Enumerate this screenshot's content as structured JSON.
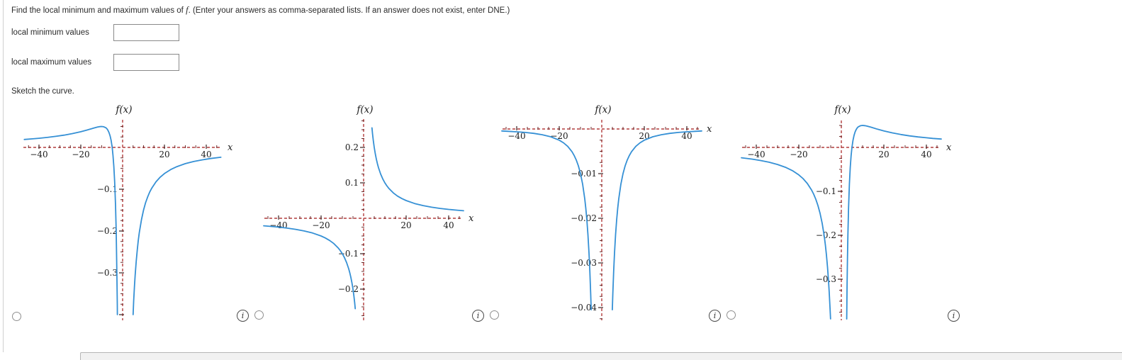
{
  "question": {
    "prefix": "Find the local minimum and maximum values of ",
    "func_symbol": "f",
    "suffix": ". (Enter your answers as comma-separated lists. If an answer does not exist, enter DNE.)"
  },
  "fields": [
    {
      "label": "local minimum values",
      "value": ""
    },
    {
      "label": "local maximum values",
      "value": ""
    }
  ],
  "sketch_prompt": "Sketch the curve.",
  "info_icon_label": "i",
  "colors": {
    "curve": "#3590d5",
    "axis": "#b23d3d",
    "minor_tick": "#6b2b2b",
    "major_tick": "#3a2222",
    "graph_text": "#1a1a1a"
  },
  "chart_data": [
    {
      "type": "line",
      "title": "f(x)",
      "xlabel": "x",
      "xlim": [
        -47,
        47
      ],
      "ylim": [
        -0.41,
        0.066
      ],
      "grid": false,
      "legend": "none",
      "x_tick_labels": [
        {
          "v": -40,
          "label": "−40"
        },
        {
          "v": -20,
          "label": "−20"
        },
        {
          "v": 20,
          "label": "20"
        },
        {
          "v": 40,
          "label": "40"
        }
      ],
      "y_tick_labels": [
        {
          "v": -0.1,
          "label": "−0.1"
        },
        {
          "v": -0.2,
          "label": "−0.2"
        },
        {
          "v": -0.3,
          "label": "−0.3"
        }
      ],
      "series": [
        {
          "name": "left-branch",
          "points": [
            [
              -47,
              0.01901
            ],
            [
              -43,
              0.02055
            ],
            [
              -40,
              0.02188
            ],
            [
              -36,
              0.02392
            ],
            [
              -32,
              0.02637
            ],
            [
              -28,
              0.02934
            ],
            [
              -24,
              0.03299
            ],
            [
              -20,
              0.0375
            ],
            [
              -17,
              0.04152
            ],
            [
              -14,
              0.04592
            ],
            [
              -12,
              0.04861
            ],
            [
              -11,
              0.04959
            ],
            [
              -10,
              0.05
            ],
            [
              -9,
              0.04938
            ],
            [
              -8,
              0.04688
            ],
            [
              -7.5,
              0.04444
            ],
            [
              -7,
              0.04082
            ],
            [
              -6.5,
              0.0355
            ],
            [
              -6,
              0.02778
            ],
            [
              -5.5,
              0.01653
            ],
            [
              -5,
              0
            ],
            [
              -4.6,
              -0.0189
            ],
            [
              -4.2,
              -0.04535
            ],
            [
              -3.8,
              -0.0831
            ],
            [
              -3.4,
              -0.13841
            ],
            [
              -3.1,
              -0.19771
            ],
            [
              -2.9,
              -0.2497
            ],
            [
              -2.7,
              -0.3155
            ],
            [
              -2.55,
              -0.37678
            ],
            [
              -2.5,
              -0.4
            ]
          ]
        },
        {
          "name": "right-branch",
          "points": [
            [
              5,
              -0.4
            ],
            [
              5.3,
              -0.36668
            ],
            [
              5.7,
              -0.32933
            ],
            [
              6,
              -0.30556
            ],
            [
              6.5,
              -0.27219
            ],
            [
              7,
              -0.2449
            ],
            [
              7.5,
              -0.22222
            ],
            [
              8,
              -0.20313
            ],
            [
              9,
              -0.17284
            ],
            [
              10,
              -0.15
            ],
            [
              11,
              -0.13223
            ],
            [
              12,
              -0.11806
            ],
            [
              13,
              -0.10651
            ],
            [
              14,
              -0.09694
            ],
            [
              16,
              -0.08203
            ],
            [
              18,
              -0.07099
            ],
            [
              20,
              -0.0625
            ],
            [
              23,
              -0.05293
            ],
            [
              26,
              -0.04586
            ],
            [
              30,
              -0.03889
            ],
            [
              34,
              -0.03374
            ],
            [
              38,
              -0.02978
            ],
            [
              42,
              -0.02664
            ],
            [
              47,
              -0.02354
            ]
          ]
        }
      ]
    },
    {
      "type": "line",
      "title": "f(x)",
      "xlabel": "x",
      "xlim": [
        -47,
        47
      ],
      "ylim": [
        -0.29,
        0.28
      ],
      "grid": false,
      "legend": "none",
      "x_tick_labels": [
        {
          "v": -40,
          "label": "−40"
        },
        {
          "v": -20,
          "label": "−20"
        },
        {
          "v": 20,
          "label": "20"
        },
        {
          "v": 40,
          "label": "40"
        }
      ],
      "y_tick_labels": [
        {
          "v": 0.2,
          "label": "0.2"
        },
        {
          "v": 0.1,
          "label": "0.1"
        },
        {
          "v": -0.1,
          "label": "−0.1"
        },
        {
          "v": -0.2,
          "label": "−0.2"
        }
      ],
      "series": [
        {
          "name": "left-branch",
          "points": [
            [
              -47,
              -0.02128
            ],
            [
              -44,
              -0.02273
            ],
            [
              -40,
              -0.025
            ],
            [
              -36,
              -0.02778
            ],
            [
              -32,
              -0.03125
            ],
            [
              -28,
              -0.03571
            ],
            [
              -24,
              -0.04167
            ],
            [
              -20,
              -0.05
            ],
            [
              -18,
              -0.05556
            ],
            [
              -16,
              -0.0625
            ],
            [
              -14,
              -0.07143
            ],
            [
              -12,
              -0.08333
            ],
            [
              -11,
              -0.09091
            ],
            [
              -10,
              -0.1
            ],
            [
              -9,
              -0.11111
            ],
            [
              -8,
              -0.125
            ],
            [
              -7,
              -0.14286
            ],
            [
              -6.5,
              -0.15385
            ],
            [
              -6,
              -0.16667
            ],
            [
              -5.5,
              -0.18182
            ],
            [
              -5,
              -0.2
            ],
            [
              -4.6,
              -0.21739
            ],
            [
              -4.2,
              -0.2381
            ],
            [
              -3.92,
              -0.2551
            ]
          ]
        },
        {
          "name": "right-branch",
          "points": [
            [
              3.92,
              0.2551
            ],
            [
              4.2,
              0.2381
            ],
            [
              4.6,
              0.21739
            ],
            [
              5,
              0.2
            ],
            [
              5.5,
              0.18182
            ],
            [
              6,
              0.16667
            ],
            [
              6.5,
              0.15385
            ],
            [
              7,
              0.14286
            ],
            [
              8,
              0.125
            ],
            [
              9,
              0.11111
            ],
            [
              10,
              0.1
            ],
            [
              11,
              0.09091
            ],
            [
              12,
              0.08333
            ],
            [
              14,
              0.07143
            ],
            [
              16,
              0.0625
            ],
            [
              18,
              0.05556
            ],
            [
              20,
              0.05
            ],
            [
              24,
              0.04167
            ],
            [
              28,
              0.03571
            ],
            [
              32,
              0.03125
            ],
            [
              36,
              0.02778
            ],
            [
              40,
              0.025
            ],
            [
              44,
              0.02273
            ],
            [
              47,
              0.02128
            ]
          ]
        }
      ]
    },
    {
      "type": "line",
      "title": "f(x)",
      "xlabel": "x",
      "xlim": [
        -47,
        47
      ],
      "ylim": [
        -0.043,
        0.002
      ],
      "grid": false,
      "legend": "none",
      "x_tick_labels": [
        {
          "v": -40,
          "label": "−40"
        },
        {
          "v": -20,
          "label": "−20"
        },
        {
          "v": 20,
          "label": "20"
        },
        {
          "v": 40,
          "label": "40"
        }
      ],
      "y_tick_labels": [
        {
          "v": -0.01,
          "label": "−0.01"
        },
        {
          "v": -0.02,
          "label": "−0.02"
        },
        {
          "v": -0.03,
          "label": "−0.03"
        },
        {
          "v": -0.04,
          "label": "−0.04"
        }
      ],
      "series": [
        {
          "name": "left-branch",
          "points": [
            [
              -47,
              -0.00045
            ],
            [
              -44,
              -0.00052
            ],
            [
              -40,
              -0.00063
            ],
            [
              -36,
              -0.00077
            ],
            [
              -32,
              -0.00098
            ],
            [
              -28,
              -0.00128
            ],
            [
              -24,
              -0.00174
            ],
            [
              -20,
              -0.0025
            ],
            [
              -18,
              -0.00309
            ],
            [
              -16,
              -0.00391
            ],
            [
              -14,
              -0.0051
            ],
            [
              -13,
              -0.00592
            ],
            [
              -12,
              -0.00694
            ],
            [
              -11,
              -0.00826
            ],
            [
              -10,
              -0.01
            ],
            [
              -9,
              -0.01235
            ],
            [
              -8,
              -0.01563
            ],
            [
              -7.5,
              -0.01778
            ],
            [
              -7,
              -0.02041
            ],
            [
              -6.5,
              -0.02367
            ],
            [
              -6,
              -0.02778
            ],
            [
              -5.6,
              -0.03189
            ],
            [
              -5.2,
              -0.03698
            ],
            [
              -4.97,
              -0.04049
            ]
          ]
        },
        {
          "name": "right-branch",
          "points": [
            [
              4.97,
              -0.04049
            ],
            [
              5.2,
              -0.03698
            ],
            [
              5.6,
              -0.03189
            ],
            [
              6,
              -0.02778
            ],
            [
              6.5,
              -0.02367
            ],
            [
              7,
              -0.02041
            ],
            [
              7.5,
              -0.01778
            ],
            [
              8,
              -0.01563
            ],
            [
              9,
              -0.01235
            ],
            [
              10,
              -0.01
            ],
            [
              11,
              -0.00826
            ],
            [
              12,
              -0.00694
            ],
            [
              13,
              -0.00592
            ],
            [
              14,
              -0.0051
            ],
            [
              16,
              -0.00391
            ],
            [
              18,
              -0.00309
            ],
            [
              20,
              -0.0025
            ],
            [
              24,
              -0.00174
            ],
            [
              28,
              -0.00128
            ],
            [
              32,
              -0.00098
            ],
            [
              36,
              -0.00077
            ],
            [
              40,
              -0.00063
            ],
            [
              44,
              -0.00052
            ],
            [
              47,
              -0.00045
            ]
          ]
        }
      ]
    },
    {
      "type": "line",
      "title": "f(x)",
      "xlabel": "x",
      "xlim": [
        -47,
        47
      ],
      "ylim": [
        -0.394,
        0.061
      ],
      "grid": false,
      "legend": "none",
      "x_tick_labels": [
        {
          "v": -40,
          "label": "−40"
        },
        {
          "v": -20,
          "label": "−20"
        },
        {
          "v": 20,
          "label": "20"
        },
        {
          "v": 40,
          "label": "40"
        }
      ],
      "y_tick_labels": [
        {
          "v": -0.1,
          "label": "−0.1"
        },
        {
          "v": -0.2,
          "label": "−0.2"
        },
        {
          "v": -0.3,
          "label": "−0.3"
        }
      ],
      "series": [
        {
          "name": "left-branch",
          "points": [
            [
              -47,
              -0.02354
            ],
            [
              -42,
              -0.02664
            ],
            [
              -38,
              -0.02978
            ],
            [
              -34,
              -0.03374
            ],
            [
              -30,
              -0.03889
            ],
            [
              -26,
              -0.04586
            ],
            [
              -23,
              -0.05293
            ],
            [
              -20,
              -0.0625
            ],
            [
              -18,
              -0.07099
            ],
            [
              -16,
              -0.08203
            ],
            [
              -14,
              -0.09694
            ],
            [
              -13,
              -0.10651
            ],
            [
              -12,
              -0.11806
            ],
            [
              -11,
              -0.13223
            ],
            [
              -10,
              -0.15
            ],
            [
              -9,
              -0.17284
            ],
            [
              -8,
              -0.20313
            ],
            [
              -7.5,
              -0.22222
            ],
            [
              -7,
              -0.2449
            ],
            [
              -6.5,
              -0.27219
            ],
            [
              -6,
              -0.30556
            ],
            [
              -5.7,
              -0.32933
            ],
            [
              -5.3,
              -0.36668
            ],
            [
              -5.08,
              -0.39031
            ]
          ]
        },
        {
          "name": "right-branch",
          "points": [
            [
              2.52,
              -0.39052
            ],
            [
              2.55,
              -0.37678
            ],
            [
              2.7,
              -0.3155
            ],
            [
              2.9,
              -0.2497
            ],
            [
              3.1,
              -0.19771
            ],
            [
              3.4,
              -0.13841
            ],
            [
              3.8,
              -0.0831
            ],
            [
              4.2,
              -0.04535
            ],
            [
              4.6,
              -0.0189
            ],
            [
              5,
              0
            ],
            [
              5.5,
              0.01653
            ],
            [
              6,
              0.02778
            ],
            [
              6.5,
              0.0355
            ],
            [
              7,
              0.04082
            ],
            [
              7.5,
              0.04444
            ],
            [
              8,
              0.04688
            ],
            [
              9,
              0.04938
            ],
            [
              10,
              0.05
            ],
            [
              11,
              0.04959
            ],
            [
              12,
              0.04861
            ],
            [
              14,
              0.04592
            ],
            [
              17,
              0.04152
            ],
            [
              20,
              0.0375
            ],
            [
              24,
              0.03299
            ],
            [
              28,
              0.02934
            ],
            [
              32,
              0.02637
            ],
            [
              36,
              0.02392
            ],
            [
              40,
              0.02188
            ],
            [
              43,
              0.02055
            ],
            [
              47,
              0.01901
            ]
          ]
        }
      ]
    }
  ]
}
